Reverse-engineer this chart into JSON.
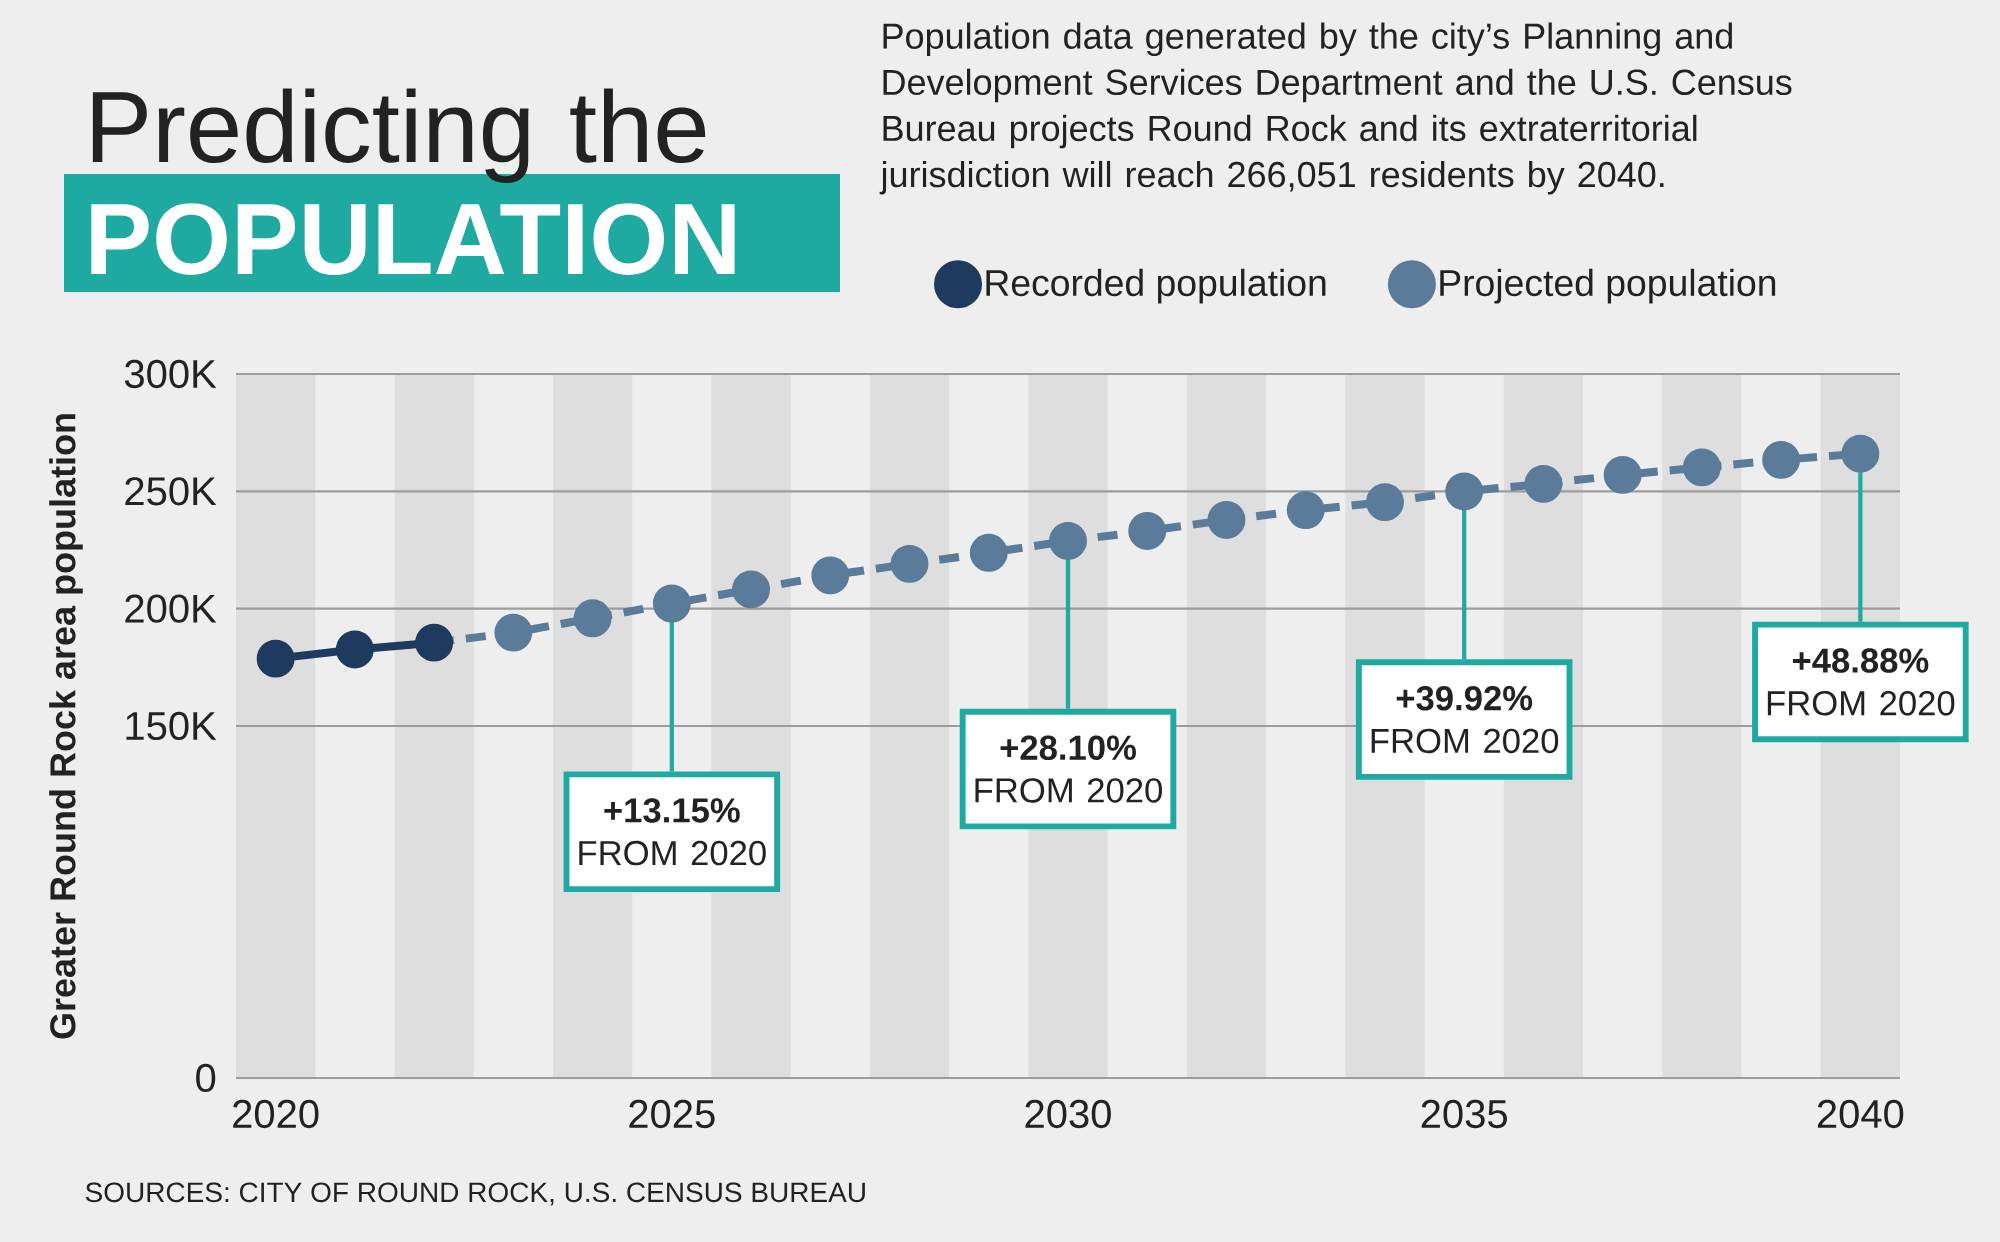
{
  "chart_data": {
    "type": "line",
    "title": "Predicting the **POPULATION**",
    "subtitle": "Population data generated by the city’s Planning and Development Services Department and the U.S. Census Bureau projects Round Rock and its extraterritorial jurisdiction will reach 266,051 residents by 2040.",
    "ylabel": "Greater Round Rock area population",
    "series": [
      {
        "name": "Recorded population",
        "color": "#1e3a5f",
        "line_style": "solid",
        "x": [
          2020,
          2021,
          2022
        ],
        "values": [
          178700,
          182600,
          185500
        ]
      },
      {
        "name": "Projected population",
        "color": "#5b7b9b",
        "line_style": "dashed",
        "x": [
          2022,
          2023,
          2024,
          2025,
          2026,
          2027,
          2028,
          2029,
          2030,
          2031,
          2032,
          2033,
          2034,
          2035,
          2036,
          2037,
          2038,
          2039,
          2040
        ],
        "values": [
          185500,
          189800,
          195900,
          202200,
          208200,
          214200,
          219100,
          223800,
          228900,
          233100,
          237800,
          242000,
          245400,
          250000,
          253200,
          257000,
          260200,
          263400,
          266051
        ]
      }
    ],
    "xlim": [
      2019.5,
      2040.5
    ],
    "xticks": [
      2020,
      2025,
      2030,
      2035,
      2040
    ],
    "ylim": [
      0,
      300000
    ],
    "yticks": [
      0,
      {
        "value": 150000,
        "label": "150K"
      },
      {
        "value": 200000,
        "label": "200K"
      },
      {
        "value": 250000,
        "label": "250K"
      },
      {
        "value": 300000,
        "label": "300K"
      }
    ],
    "grid": "y",
    "legend": "top right",
    "marker": "circle",
    "bands": [
      {
        "axis": "x",
        "from": 2019.5,
        "to": 2020.5,
        "color": "#dedede"
      },
      {
        "axis": "x",
        "from": 2021.5,
        "to": 2022.5,
        "color": "#dedede"
      },
      {
        "axis": "x",
        "from": 2023.5,
        "to": 2024.5,
        "color": "#dedede"
      },
      {
        "axis": "x",
        "from": 2025.5,
        "to": 2026.5,
        "color": "#dedede"
      },
      {
        "axis": "x",
        "from": 2027.5,
        "to": 2028.5,
        "color": "#dedede"
      },
      {
        "axis": "x",
        "from": 2029.5,
        "to": 2030.5,
        "color": "#dedede"
      },
      {
        "axis": "x",
        "from": 2031.5,
        "to": 2032.5,
        "color": "#dedede"
      },
      {
        "axis": "x",
        "from": 2033.5,
        "to": 2034.5,
        "color": "#dedede"
      },
      {
        "axis": "x",
        "from": 2035.5,
        "to": 2036.5,
        "color": "#dedede"
      },
      {
        "axis": "x",
        "from": 2037.5,
        "to": 2038.5,
        "color": "#dedede"
      },
      {
        "axis": "x",
        "from": 2039.5,
        "to": 2040.5,
        "color": "#dedede"
      }
    ],
    "annotations": [
      {
        "text": "**+13.15%** FROM 2020",
        "x": 2025,
        "y": 202200
      },
      {
        "text": "**+28.10%** FROM 2020",
        "x": 2030,
        "y": 228900
      },
      {
        "text": "**+39.92%** FROM 2020",
        "x": 2035,
        "y": 250000
      },
      {
        "text": "**+48.88%** FROM 2020",
        "x": 2040,
        "y": 266051
      },
      "SOURCES: CITY OF ROUND ROCK, U.S. CENSUS BUREAU"
    ]
  }
}
